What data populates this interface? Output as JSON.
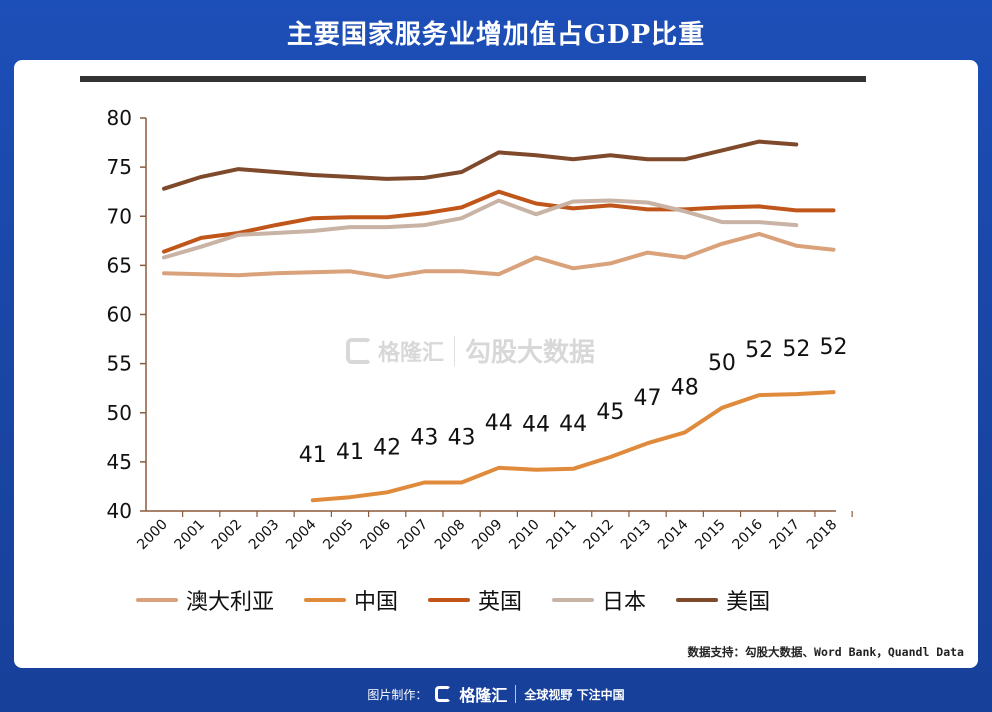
{
  "title": "主要国家服务业增加值占GDP比重",
  "source": "数据支持：勾股大数据、Word Bank，Quandl Data",
  "watermark": {
    "brand": "格隆汇",
    "text": "勾股大数据"
  },
  "footer": {
    "made_by": "图片制作：",
    "brand": "格隆汇",
    "slogan": "全球视野 下注中国"
  },
  "chart_data": {
    "type": "line",
    "title": "主要国家服务业增加值占GDP比重",
    "xlabel": "",
    "ylabel": "",
    "ylim": [
      40,
      80
    ],
    "yticks": [
      40,
      45,
      50,
      55,
      60,
      65,
      70,
      75,
      80
    ],
    "grid": false,
    "legend_position": "bottom",
    "categories": [
      "2000",
      "2001",
      "2002",
      "2003",
      "2004",
      "2005",
      "2006",
      "2007",
      "2008",
      "2009",
      "2010",
      "2011",
      "2012",
      "2013",
      "2014",
      "2015",
      "2016",
      "2017",
      "2018"
    ],
    "series": [
      {
        "name": "澳大利亚",
        "color": "#d9a27a",
        "values": [
          64.2,
          64.1,
          64.0,
          64.2,
          64.3,
          64.4,
          63.8,
          64.4,
          64.4,
          64.1,
          65.8,
          64.7,
          65.2,
          66.3,
          65.8,
          67.2,
          68.2,
          67.0,
          66.6
        ]
      },
      {
        "name": "中国",
        "color": "#e08a3c",
        "values": [
          null,
          null,
          null,
          null,
          41.1,
          41.4,
          41.9,
          42.9,
          42.9,
          44.4,
          44.2,
          44.3,
          45.5,
          46.9,
          48.0,
          50.5,
          51.8,
          51.9,
          52.1
        ],
        "data_labels": [
          null,
          null,
          null,
          null,
          "41",
          "41",
          "42",
          "43",
          "43",
          "44",
          "44",
          "44",
          "45",
          "47",
          "48",
          "50",
          "52",
          "52",
          "52"
        ]
      },
      {
        "name": "英国",
        "color": "#c0561a",
        "values": [
          66.4,
          67.8,
          68.3,
          69.1,
          69.8,
          69.9,
          69.9,
          70.3,
          70.9,
          72.5,
          71.3,
          70.8,
          71.1,
          70.7,
          70.7,
          70.9,
          71.0,
          70.6,
          70.6
        ]
      },
      {
        "name": "日本",
        "color": "#c8b3a4",
        "values": [
          65.8,
          66.9,
          68.1,
          68.3,
          68.5,
          68.9,
          68.9,
          69.1,
          69.8,
          71.6,
          70.2,
          71.5,
          71.6,
          71.4,
          70.5,
          69.4,
          69.4,
          69.1,
          null
        ]
      },
      {
        "name": "美国",
        "color": "#7e4a2b",
        "values": [
          72.8,
          74.0,
          74.8,
          74.5,
          74.2,
          74.0,
          73.8,
          73.9,
          74.5,
          76.5,
          76.2,
          75.8,
          76.2,
          75.8,
          75.8,
          76.7,
          77.6,
          77.3,
          null
        ]
      }
    ]
  }
}
